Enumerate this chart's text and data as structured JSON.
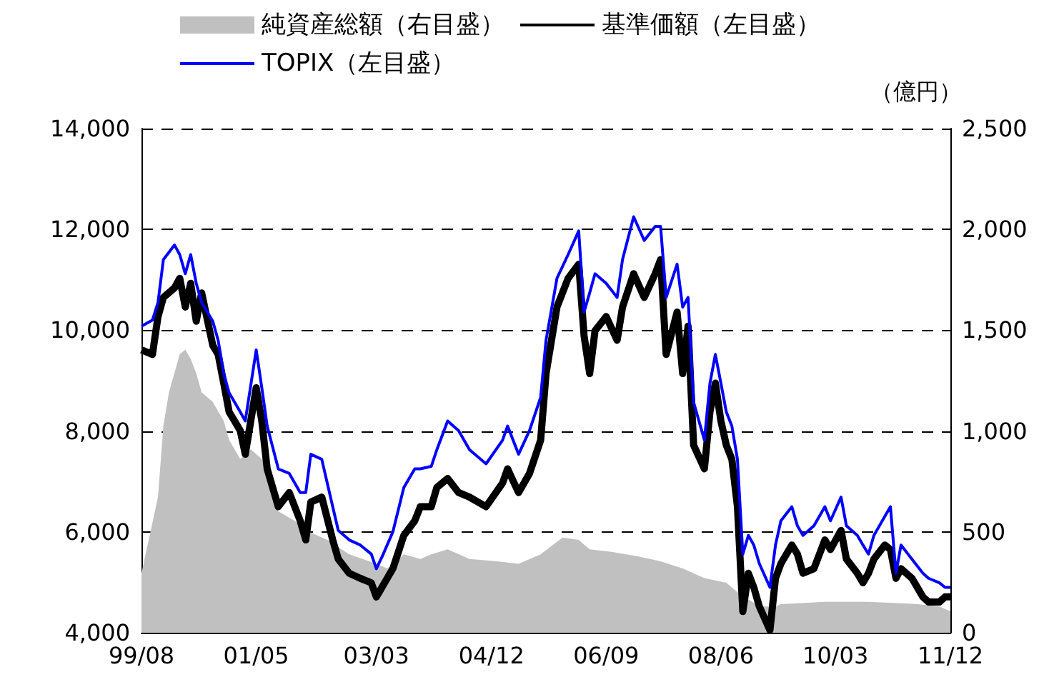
{
  "chart_data": {
    "type": "line",
    "y2label": "（億円）",
    "xlim": [
      "1999-08",
      "2011-12"
    ],
    "xticks": [
      {
        "value": "1999-08",
        "label": "99/08"
      },
      {
        "value": "2001-05",
        "label": "01/05"
      },
      {
        "value": "2003-03",
        "label": "03/03"
      },
      {
        "value": "2004-12",
        "label": "04/12"
      },
      {
        "value": "2006-09",
        "label": "06/09"
      },
      {
        "value": "2008-06",
        "label": "08/06"
      },
      {
        "value": "2010-03",
        "label": "10/03"
      },
      {
        "value": "2011-12",
        "label": "11/12"
      }
    ],
    "ylim": [
      4000,
      14000
    ],
    "yticks": [
      {
        "value": 4000,
        "label": "4,000"
      },
      {
        "value": 6000,
        "label": "6,000"
      },
      {
        "value": 8000,
        "label": "8,000"
      },
      {
        "value": 10000,
        "label": "10,000"
      },
      {
        "value": 12000,
        "label": "12,000"
      },
      {
        "value": 14000,
        "label": "14,000"
      }
    ],
    "y2lim": [
      0,
      2500
    ],
    "y2ticks": [
      0,
      500,
      {
        "value": 1000,
        "label": "1,000"
      },
      {
        "value": 1500,
        "label": "1,500"
      },
      {
        "value": 2000,
        "label": "2,000"
      },
      {
        "value": 2500,
        "label": "2,500"
      }
    ],
    "grid": "y",
    "legend": "top",
    "marker": "none",
    "line_style": "solid",
    "series": [
      {
        "name": "純資産総額（右目盛）",
        "type": "area",
        "axis": "y2",
        "color": "#c0c0c0",
        "x": [
          "1999-08",
          "1999-11",
          "1999-12",
          "2000-01",
          "2000-03",
          "2000-04",
          "2000-05",
          "2000-06",
          "2000-07",
          "2000-09",
          "2000-11",
          "2000-12",
          "2001-02",
          "2001-04",
          "2001-06",
          "2001-07",
          "2001-09",
          "2001-12",
          "2002-02",
          "2002-06",
          "2002-10",
          "2003-03",
          "2003-05",
          "2003-08",
          "2003-11",
          "2004-01",
          "2004-04",
          "2004-08",
          "2005-01",
          "2005-05",
          "2005-09",
          "2006-01",
          "2006-04",
          "2006-06",
          "2006-10",
          "2007-03",
          "2007-07",
          "2007-11",
          "2008-03",
          "2008-07",
          "2008-09",
          "2009-01",
          "2009-04",
          "2009-05",
          "2010-01",
          "2010-09",
          "2011-06",
          "2011-10",
          "2011-12"
        ],
        "values": [
          295,
          673,
          1027,
          1192,
          1381,
          1404,
          1357,
          1286,
          1192,
          1145,
          1050,
          956,
          861,
          909,
          861,
          814,
          602,
          555,
          507,
          460,
          389,
          342,
          319,
          389,
          366,
          389,
          413,
          366,
          354,
          342,
          389,
          472,
          460,
          413,
          401,
          378,
          354,
          319,
          271,
          248,
          201,
          130,
          130,
          142,
          153,
          153,
          142,
          130,
          106
        ]
      },
      {
        "name": "基準価額（左目盛）",
        "color": "#000000",
        "x": [
          "1999-08",
          "1999-10",
          "1999-11",
          "1999-12",
          "2000-02",
          "2000-03",
          "2000-04",
          "2000-05",
          "2000-06",
          "2000-07",
          "2000-09",
          "2000-10",
          "2000-11",
          "2000-12",
          "2001-02",
          "2001-03",
          "2001-05",
          "2001-06",
          "2001-07",
          "2001-09",
          "2001-11",
          "2002-01",
          "2002-02",
          "2002-03",
          "2002-05",
          "2002-07",
          "2002-08",
          "2002-10",
          "2002-12",
          "2003-02",
          "2003-03",
          "2003-04",
          "2003-06",
          "2003-08",
          "2003-10",
          "2003-11",
          "2004-01",
          "2004-02",
          "2004-04",
          "2004-06",
          "2004-08",
          "2004-11",
          "2005-02",
          "2005-03",
          "2005-05",
          "2005-07",
          "2005-09",
          "2005-10",
          "2005-12",
          "2006-02",
          "2006-04",
          "2006-05",
          "2006-06",
          "2006-07",
          "2006-09",
          "2006-11",
          "2006-12",
          "2007-02",
          "2007-04",
          "2007-06",
          "2007-07",
          "2007-08",
          "2007-10",
          "2007-11",
          "2007-12",
          "2008-01",
          "2008-03",
          "2008-04",
          "2008-05",
          "2008-06",
          "2008-07",
          "2008-08",
          "2008-09",
          "2008-10",
          "2008-11",
          "2008-12",
          "2009-01",
          "2009-03",
          "2009-04",
          "2009-05",
          "2009-07",
          "2009-08",
          "2009-09",
          "2009-11",
          "2010-01",
          "2010-02",
          "2010-04",
          "2010-05",
          "2010-07",
          "2010-08",
          "2010-09",
          "2010-10",
          "2010-12",
          "2011-01",
          "2011-02",
          "2011-03",
          "2011-05",
          "2011-07",
          "2011-08",
          "2011-10",
          "2011-11",
          "2011-12"
        ],
        "values": [
          9610,
          9520,
          10270,
          10650,
          10840,
          11030,
          10460,
          10930,
          10180,
          10740,
          9700,
          9520,
          8950,
          8380,
          8010,
          7540,
          8860,
          8200,
          7250,
          6500,
          6780,
          6220,
          5840,
          6590,
          6690,
          5840,
          5460,
          5180,
          5080,
          4990,
          4710,
          4900,
          5270,
          5930,
          6220,
          6500,
          6500,
          6880,
          7060,
          6780,
          6690,
          6500,
          6970,
          7250,
          6780,
          7160,
          7820,
          9140,
          10460,
          11030,
          11310,
          9890,
          9140,
          9990,
          10270,
          9800,
          10460,
          11120,
          10650,
          11120,
          11400,
          9520,
          10360,
          9140,
          10080,
          7720,
          7250,
          8380,
          8950,
          8200,
          7720,
          7440,
          6500,
          4420,
          5180,
          4900,
          4520,
          4050,
          5080,
          5370,
          5740,
          5560,
          5180,
          5270,
          5840,
          5650,
          6030,
          5460,
          5180,
          4990,
          5180,
          5460,
          5740,
          5650,
          5080,
          5270,
          5080,
          4710,
          4610,
          4610,
          4710,
          4710
        ]
      },
      {
        "name": "TOPIX（左目盛）",
        "color": "#0000ff",
        "x": [
          "1999-08",
          "1999-10",
          "1999-11",
          "1999-12",
          "2000-02",
          "2000-03",
          "2000-04",
          "2000-05",
          "2000-06",
          "2000-07",
          "2000-09",
          "2000-10",
          "2000-11",
          "2000-12",
          "2001-02",
          "2001-03",
          "2001-05",
          "2001-06",
          "2001-07",
          "2001-09",
          "2001-11",
          "2002-01",
          "2002-02",
          "2002-03",
          "2002-05",
          "2002-07",
          "2002-08",
          "2002-10",
          "2002-12",
          "2003-02",
          "2003-03",
          "2003-04",
          "2003-06",
          "2003-08",
          "2003-10",
          "2003-11",
          "2004-01",
          "2004-02",
          "2004-04",
          "2004-06",
          "2004-08",
          "2004-11",
          "2005-02",
          "2005-03",
          "2005-05",
          "2005-07",
          "2005-09",
          "2005-10",
          "2005-12",
          "2006-02",
          "2006-04",
          "2006-05",
          "2006-06",
          "2006-07",
          "2006-09",
          "2006-11",
          "2006-12",
          "2007-02",
          "2007-04",
          "2007-06",
          "2007-07",
          "2007-08",
          "2007-10",
          "2007-11",
          "2007-12",
          "2008-01",
          "2008-03",
          "2008-04",
          "2008-05",
          "2008-06",
          "2008-07",
          "2008-08",
          "2008-09",
          "2008-10",
          "2008-11",
          "2008-12",
          "2009-01",
          "2009-03",
          "2009-04",
          "2009-05",
          "2009-07",
          "2009-08",
          "2009-09",
          "2009-11",
          "2010-01",
          "2010-02",
          "2010-04",
          "2010-05",
          "2010-07",
          "2010-08",
          "2010-09",
          "2010-10",
          "2010-12",
          "2011-01",
          "2011-02",
          "2011-03",
          "2011-05",
          "2011-07",
          "2011-08",
          "2011-10",
          "2011-11",
          "2011-12"
        ],
        "values": [
          10080,
          10200,
          10550,
          11400,
          11690,
          11500,
          11120,
          11500,
          10930,
          10550,
          10180,
          9800,
          9140,
          8760,
          8380,
          8200,
          9610,
          8860,
          8100,
          7250,
          7160,
          6780,
          6780,
          7540,
          7440,
          6500,
          6030,
          5840,
          5740,
          5560,
          5270,
          5500,
          6000,
          6880,
          7250,
          7250,
          7300,
          7630,
          8200,
          8010,
          7630,
          7350,
          7820,
          8100,
          7540,
          8010,
          8670,
          9800,
          11030,
          11500,
          11970,
          10360,
          10740,
          11120,
          10930,
          10650,
          11400,
          12250,
          11780,
          12060,
          12060,
          10650,
          11310,
          10460,
          10650,
          8570,
          7820,
          8950,
          9520,
          8950,
          8380,
          8100,
          7440,
          5560,
          5930,
          5740,
          5370,
          4900,
          5740,
          6220,
          6500,
          6120,
          5930,
          6120,
          6500,
          6220,
          6690,
          6120,
          5930,
          5740,
          5560,
          5930,
          6310,
          6500,
          5180,
          5740,
          5460,
          5180,
          5080,
          4990,
          4900,
          4900
        ]
      }
    ]
  }
}
